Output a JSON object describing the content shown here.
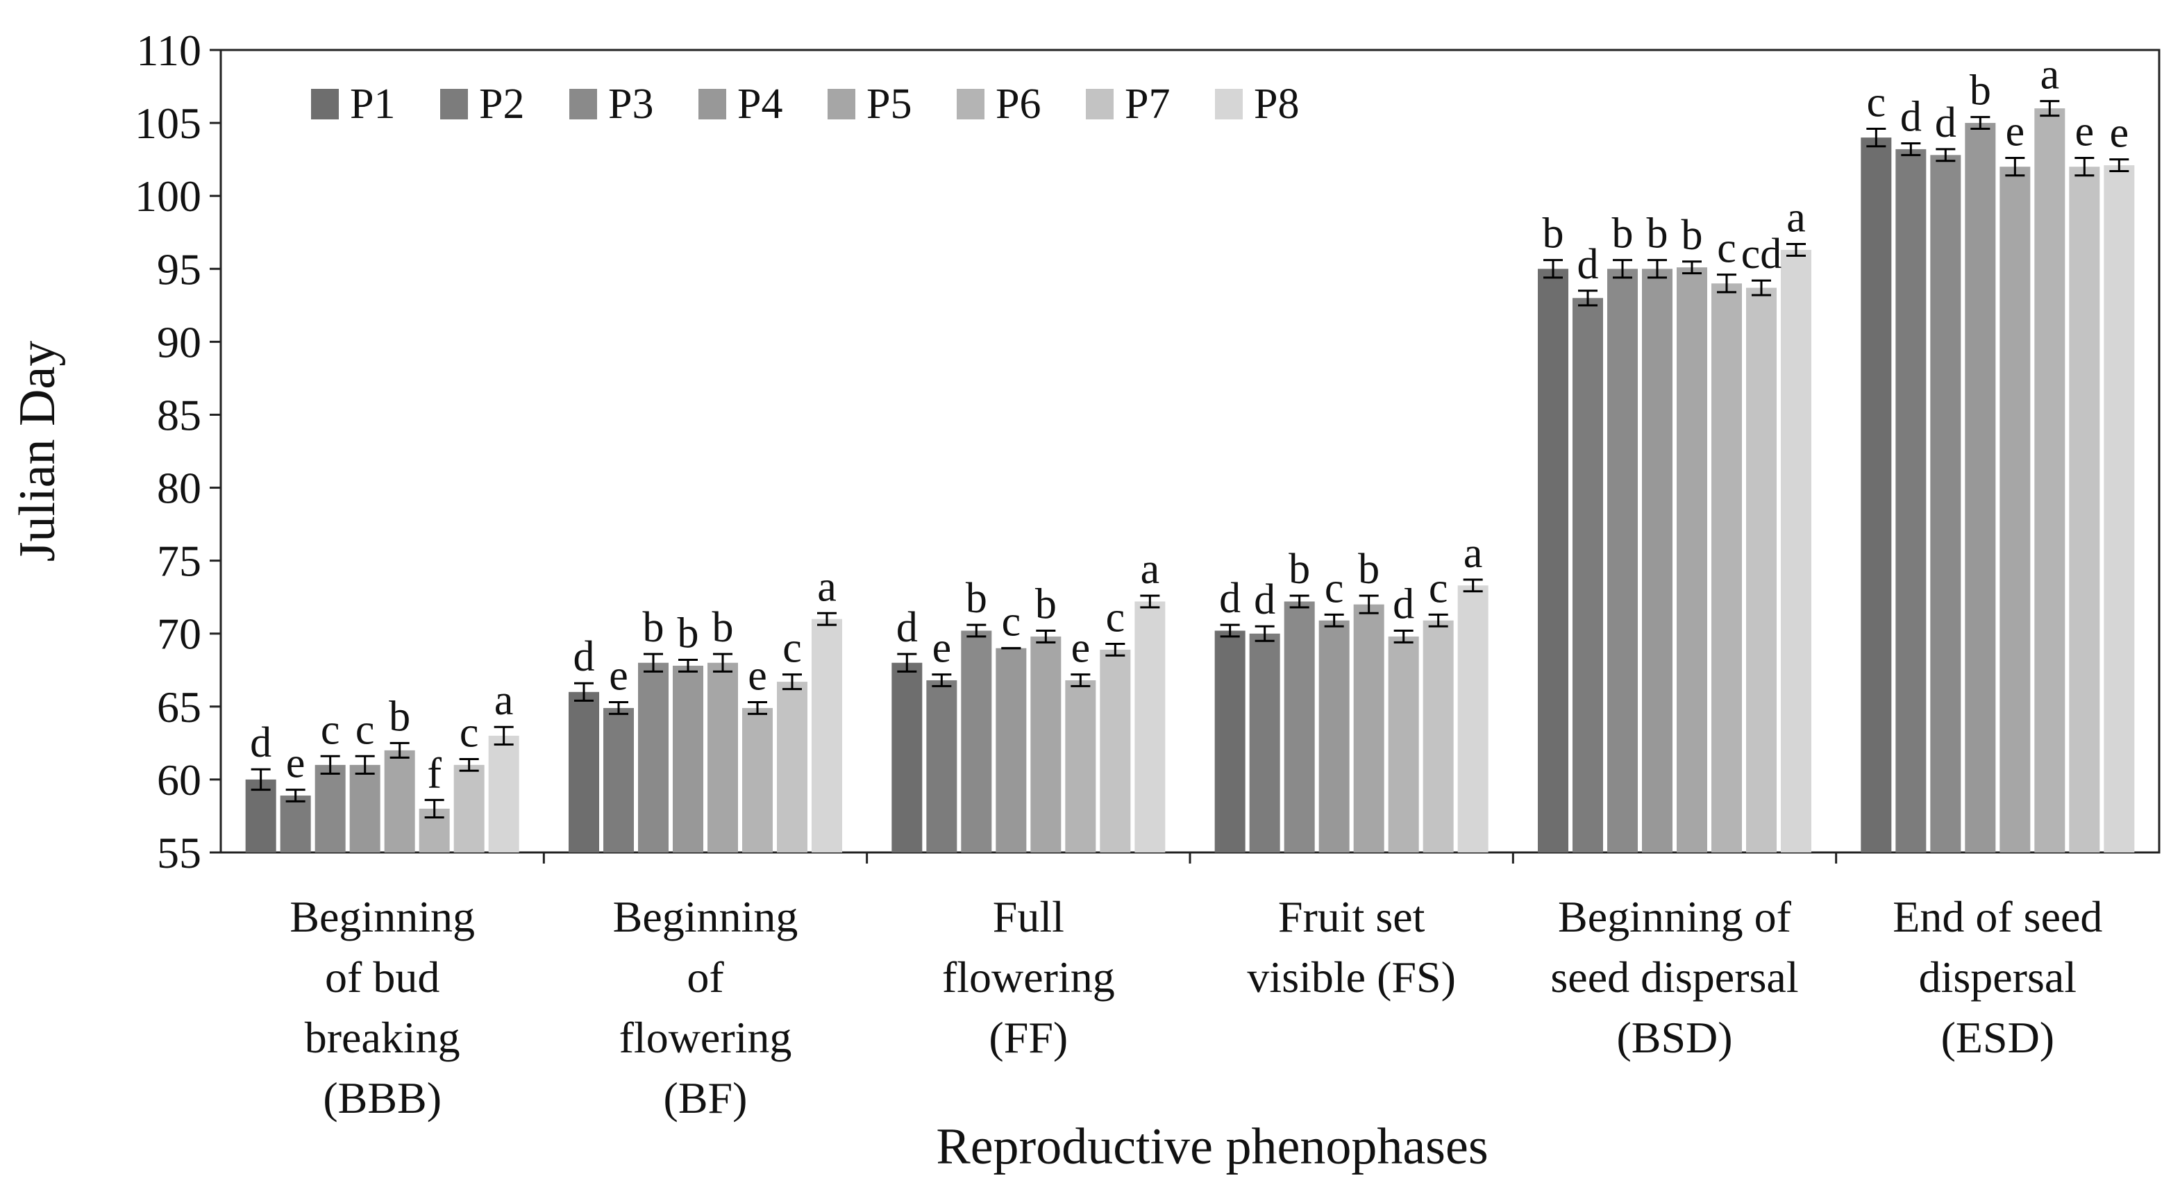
{
  "chart_data": {
    "type": "bar",
    "title": "",
    "xlabel": "Reproductive phenophases",
    "ylabel": "Julian Day",
    "ylim": [
      55,
      110
    ],
    "yticks": [
      55,
      60,
      65,
      70,
      75,
      80,
      85,
      90,
      95,
      100,
      105,
      110
    ],
    "legend_position": "top-left",
    "categories": [
      [
        "Beginning",
        "of bud",
        "breaking",
        "(BBB)"
      ],
      [
        "Beginning",
        "of",
        "flowering",
        "(BF)"
      ],
      [
        "Full",
        "flowering",
        "(FF)"
      ],
      [
        "Fruit set",
        "visible (FS)"
      ],
      [
        "Beginning of",
        "seed dispersal",
        "(BSD)"
      ],
      [
        "End of seed",
        "dispersal",
        "(ESD)"
      ]
    ],
    "series": [
      {
        "name": "P1",
        "color": "#6e6e6e",
        "values": [
          60,
          66,
          68,
          70.2,
          95,
          104
        ],
        "errors": [
          0.7,
          0.6,
          0.6,
          0.4,
          0.6,
          0.6
        ],
        "letters": [
          "d",
          "d",
          "d",
          "d",
          "b",
          "c"
        ]
      },
      {
        "name": "P2",
        "color": "#7c7c7c",
        "values": [
          58.9,
          64.9,
          66.8,
          70,
          93,
          103.2
        ],
        "errors": [
          0.4,
          0.4,
          0.4,
          0.5,
          0.5,
          0.4
        ],
        "letters": [
          "e",
          "e",
          "e",
          "d",
          "d",
          "d"
        ]
      },
      {
        "name": "P3",
        "color": "#8a8a8a",
        "values": [
          61,
          68,
          70.2,
          72.2,
          95,
          102.8
        ],
        "errors": [
          0.6,
          0.6,
          0.4,
          0.4,
          0.6,
          0.4
        ],
        "letters": [
          "c",
          "b",
          "b",
          "b",
          "b",
          "d"
        ]
      },
      {
        "name": "P4",
        "color": "#989898",
        "values": [
          61,
          67.8,
          69,
          70.9,
          95,
          105
        ],
        "errors": [
          0.6,
          0.4,
          0,
          0.4,
          0.6,
          0.4
        ],
        "letters": [
          "c",
          "b",
          "c",
          "c",
          "b",
          "b"
        ]
      },
      {
        "name": "P5",
        "color": "#a6a6a6",
        "values": [
          62,
          68,
          69.8,
          72,
          95.1,
          102
        ],
        "errors": [
          0.5,
          0.6,
          0.4,
          0.6,
          0.4,
          0.6
        ],
        "letters": [
          "b",
          "b",
          "b",
          "b",
          "b",
          "e"
        ]
      },
      {
        "name": "P6",
        "color": "#b4b4b4",
        "values": [
          58,
          64.9,
          66.8,
          69.8,
          94,
          106
        ],
        "errors": [
          0.6,
          0.4,
          0.4,
          0.4,
          0.6,
          0.5
        ],
        "letters": [
          "f",
          "e",
          "e",
          "d",
          "c",
          "a"
        ]
      },
      {
        "name": "P7",
        "color": "#c3c3c3",
        "values": [
          61,
          66.7,
          68.9,
          70.9,
          93.7,
          102
        ],
        "errors": [
          0.4,
          0.5,
          0.4,
          0.4,
          0.5,
          0.6
        ],
        "letters": [
          "c",
          "c",
          "c",
          "c",
          "cd",
          "e"
        ]
      },
      {
        "name": "P8",
        "color": "#d6d6d6",
        "values": [
          63,
          71,
          72.2,
          73.3,
          96.3,
          102.1
        ],
        "errors": [
          0.6,
          0.4,
          0.4,
          0.4,
          0.4,
          0.4
        ],
        "letters": [
          "a",
          "a",
          "a",
          "a",
          "a",
          "e"
        ]
      }
    ]
  }
}
